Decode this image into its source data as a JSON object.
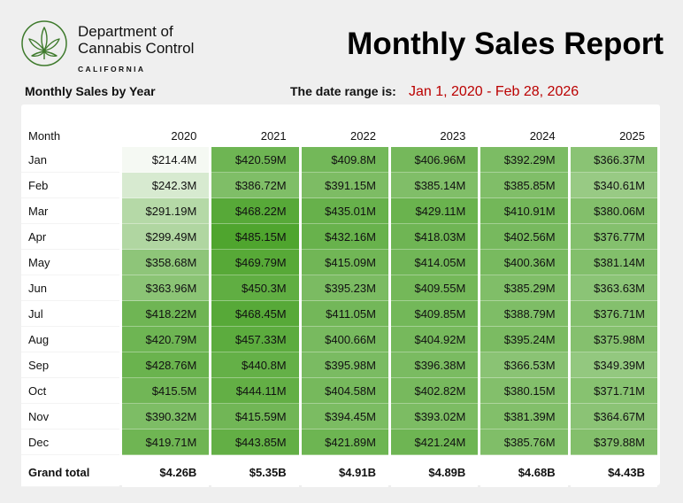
{
  "header": {
    "org_line1": "Department of",
    "org_line2": "Cannabis Control",
    "org_state": "CALIFORNIA",
    "title": "Monthly Sales Report",
    "subtitle": "Monthly Sales by Year",
    "date_range_label": "The date range is:",
    "date_range_value": "Jan 1, 2020 - Feb 28, 2026"
  },
  "colors": {
    "accent": "#3e7a2c",
    "date_range": "#bb0000",
    "heat_low": "#f6faf4",
    "heat_high": "#4fa52e"
  },
  "table": {
    "month_header": "Month",
    "years": [
      "2020",
      "2021",
      "2022",
      "2023",
      "2024",
      "2025"
    ],
    "rows": [
      {
        "month": "Jan",
        "values": [
          "$214.4M",
          "$420.59M",
          "$409.8M",
          "$406.96M",
          "$392.29M",
          "$366.37M"
        ]
      },
      {
        "month": "Feb",
        "values": [
          "$242.3M",
          "$386.72M",
          "$391.15M",
          "$385.14M",
          "$385.85M",
          "$340.61M"
        ]
      },
      {
        "month": "Mar",
        "values": [
          "$291.19M",
          "$468.22M",
          "$435.01M",
          "$429.11M",
          "$410.91M",
          "$380.06M"
        ]
      },
      {
        "month": "Apr",
        "values": [
          "$299.49M",
          "$485.15M",
          "$432.16M",
          "$418.03M",
          "$402.56M",
          "$376.77M"
        ]
      },
      {
        "month": "May",
        "values": [
          "$358.68M",
          "$469.79M",
          "$415.09M",
          "$414.05M",
          "$400.36M",
          "$381.14M"
        ]
      },
      {
        "month": "Jun",
        "values": [
          "$363.96M",
          "$450.3M",
          "$395.23M",
          "$409.55M",
          "$385.29M",
          "$363.63M"
        ]
      },
      {
        "month": "Jul",
        "values": [
          "$418.22M",
          "$468.45M",
          "$411.05M",
          "$409.85M",
          "$388.79M",
          "$376.71M"
        ]
      },
      {
        "month": "Aug",
        "values": [
          "$420.79M",
          "$457.33M",
          "$400.66M",
          "$404.92M",
          "$395.24M",
          "$375.98M"
        ]
      },
      {
        "month": "Sep",
        "values": [
          "$428.76M",
          "$440.8M",
          "$395.98M",
          "$396.38M",
          "$366.53M",
          "$349.39M"
        ]
      },
      {
        "month": "Oct",
        "values": [
          "$415.5M",
          "$444.11M",
          "$404.58M",
          "$402.82M",
          "$380.15M",
          "$371.71M"
        ]
      },
      {
        "month": "Nov",
        "values": [
          "$390.32M",
          "$415.59M",
          "$394.45M",
          "$393.02M",
          "$381.39M",
          "$364.67M"
        ]
      },
      {
        "month": "Dec",
        "values": [
          "$419.71M",
          "$443.85M",
          "$421.89M",
          "$421.24M",
          "$385.76M",
          "$379.88M"
        ]
      }
    ],
    "total_label": "Grand total",
    "totals": [
      "$4.26B",
      "$5.35B",
      "$4.91B",
      "$4.89B",
      "$4.68B",
      "$4.43B"
    ]
  }
}
